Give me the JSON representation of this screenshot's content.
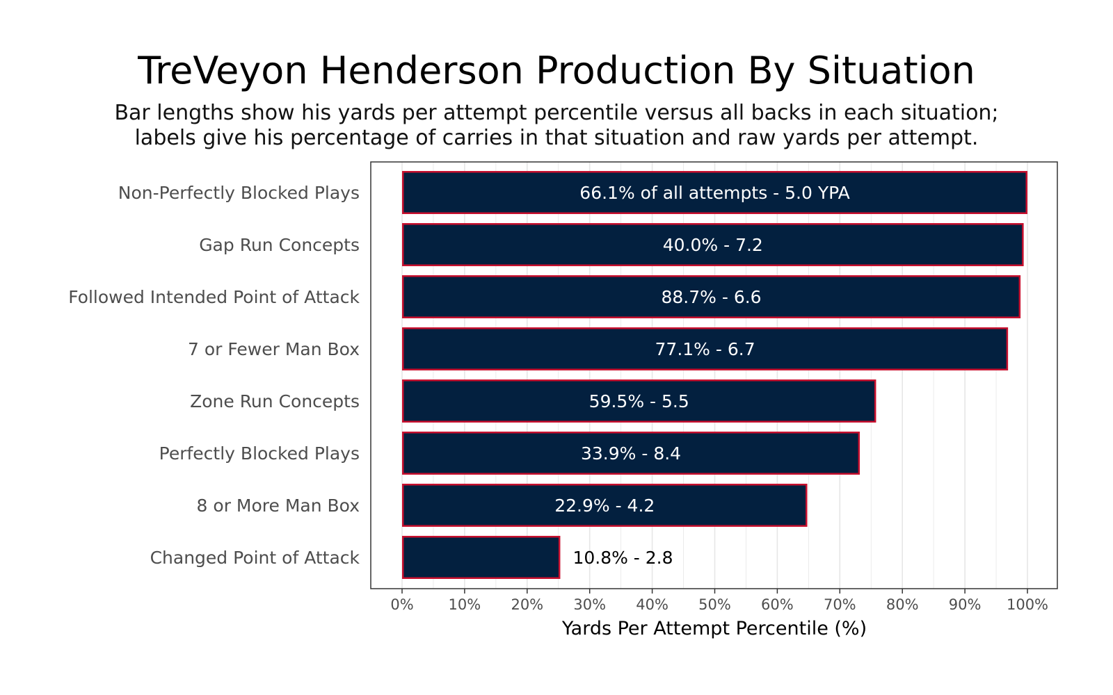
{
  "chart_data": {
    "type": "bar",
    "orientation": "horizontal",
    "title": "TreVeyon Henderson Production By Situation",
    "subtitle": [
      "Bar lengths show his yards per attempt percentile versus all backs in each situation;",
      "labels give his percentage of carries in that situation and raw yards per attempt."
    ],
    "xlabel": "Yards Per Attempt Percentile (%)",
    "ylabel": "",
    "xlim": [
      0,
      100
    ],
    "x_ticks": [
      0,
      10,
      20,
      30,
      40,
      50,
      60,
      70,
      80,
      90,
      100
    ],
    "x_tick_labels": [
      "0%",
      "10%",
      "20%",
      "30%",
      "40%",
      "50%",
      "60%",
      "70%",
      "80%",
      "90%",
      "100%"
    ],
    "grid": true,
    "legend": "none",
    "categories": [
      "Non-Perfectly Blocked Plays",
      "Gap Run Concepts",
      "Followed Intended Point of Attack",
      "7 or Fewer Man Box",
      "Zone Run Concepts",
      "Perfectly Blocked Plays",
      "8 or More Man Box",
      "Changed Point of Attack"
    ],
    "values": [
      100,
      99.4,
      98.9,
      96.9,
      75.8,
      73.2,
      64.8,
      25.3
    ],
    "labels": [
      "66.1% of all attempts - 5.0 YPA",
      "40.0% - 7.2",
      "88.7% - 6.6",
      "77.1% - 6.7",
      "59.5% - 5.5",
      "33.9% - 8.4",
      "22.9% - 4.2",
      "10.8% - 2.8"
    ],
    "colors": {
      "bar_fill": "#03203F",
      "bar_border": "#C8102E",
      "label_inside": "#ffffff",
      "label_outside": "#000000",
      "grid": "#e6e6e6",
      "panel_border": "#333333"
    }
  }
}
